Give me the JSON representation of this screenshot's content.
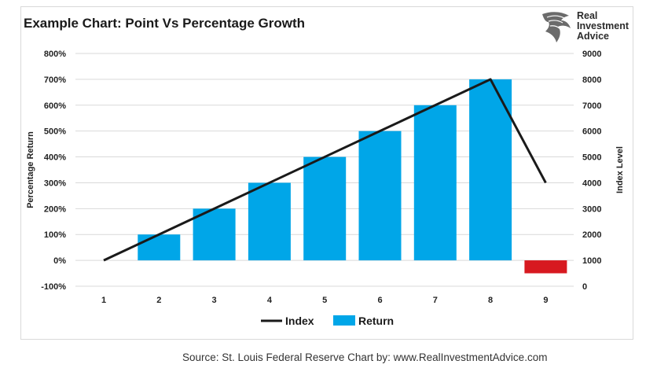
{
  "header": {
    "title": "Example Chart:  Point Vs Percentage Growth",
    "logo_lines": [
      "Real",
      "Investment",
      "Advice"
    ]
  },
  "source_text": "Source: St. Louis Federal Reserve Chart by: www.RealInvestmentAdvice.com",
  "colors": {
    "bar_positive": "#00a6e8",
    "bar_negative": "#d71920",
    "line": "#1a1a1a",
    "grid": "#d9d9d9"
  },
  "chart_data": {
    "type": "bar+line",
    "title": "Example Chart:  Point Vs Percentage Growth",
    "categories": [
      "1",
      "2",
      "3",
      "4",
      "5",
      "6",
      "7",
      "8",
      "9"
    ],
    "series": [
      {
        "name": "Return",
        "type": "bar",
        "axis": "left",
        "values": [
          0,
          100,
          200,
          300,
          400,
          500,
          600,
          700,
          -50
        ]
      },
      {
        "name": "Index",
        "type": "line",
        "axis": "right",
        "values": [
          1000,
          2000,
          3000,
          4000,
          5000,
          6000,
          7000,
          8000,
          4000
        ]
      }
    ],
    "y_left": {
      "label": "Percentage Return",
      "range": [
        -100,
        800
      ],
      "ticks": [
        "-100%",
        "0%",
        "100%",
        "200%",
        "300%",
        "400%",
        "500%",
        "600%",
        "700%",
        "800%"
      ]
    },
    "y_right": {
      "label": "Index Level",
      "range": [
        0,
        9000
      ],
      "ticks": [
        "0",
        "1000",
        "2000",
        "3000",
        "4000",
        "5000",
        "6000",
        "7000",
        "8000",
        "9000"
      ]
    },
    "grid": true,
    "legend_position": "bottom",
    "legend": [
      "Index",
      "Return"
    ]
  }
}
